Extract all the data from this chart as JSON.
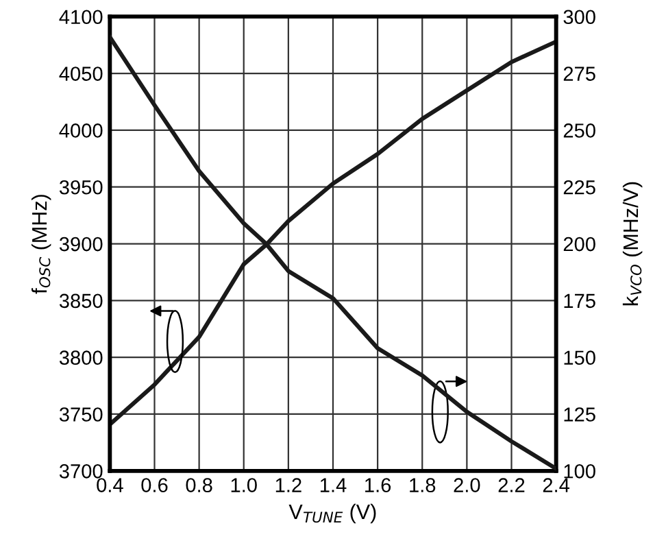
{
  "chart_data": {
    "type": "line",
    "xlabel": "V$_{TUNE}$ (V)",
    "ylabel": "f$_{OSC}$ (MHz)",
    "y2label": "k$_{VCO}$ (MHz/V)",
    "x": [
      0.4,
      0.6,
      0.8,
      1.0,
      1.1,
      1.2,
      1.4,
      1.6,
      1.8,
      2.0,
      2.2,
      2.4
    ],
    "series": [
      {
        "color": "#1a1a1a",
        "values": [
          3741,
          3776,
          3818,
          3882,
          3899,
          3920,
          3953,
          3979,
          4010,
          4035,
          4060,
          4078
        ]
      },
      {
        "color": "#1a1a1a",
        "axis": "y2",
        "values": [
          291,
          261,
          232,
          209,
          200,
          188,
          176,
          154,
          142,
          126,
          113,
          101
        ]
      }
    ],
    "xlim": [
      0.4,
      2.4
    ],
    "xticks": [
      0.4,
      0.6,
      0.8,
      {
        "value": 1,
        "label": "1.0"
      },
      1.2,
      1.4,
      1.6,
      1.8,
      {
        "value": 2,
        "label": "2.0"
      },
      2.2,
      2.4
    ],
    "ylim": [
      3700,
      4100
    ],
    "yticks": [
      3700,
      3750,
      3800,
      3850,
      3900,
      3950,
      4000,
      4050,
      4100
    ],
    "y2lim": [
      100,
      300
    ],
    "y2ticks": [
      100,
      125,
      150,
      175,
      200,
      225,
      250,
      275,
      300
    ],
    "grid": true,
    "line_style": "solid",
    "marker": "none"
  }
}
